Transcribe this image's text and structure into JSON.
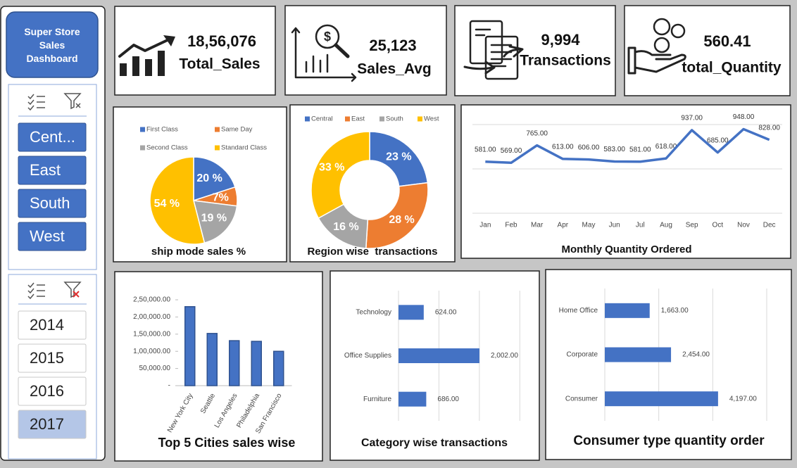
{
  "header": {
    "title": "Super Store Sales Dashboard"
  },
  "slicers": [
    {
      "items": [
        "Cent...",
        "East",
        "South",
        "West"
      ]
    },
    {
      "items": [
        "2014",
        "2015",
        "2016",
        "2017"
      ],
      "selected": 3
    }
  ],
  "kpis": [
    {
      "value": "18,56,076",
      "label": "Total_Sales"
    },
    {
      "value": "25,123",
      "label": "Sales_Avg"
    },
    {
      "value": "9,994",
      "label": "Transactions"
    },
    {
      "value": "560.41",
      "label": "total_Quantity"
    }
  ],
  "chart_data": [
    {
      "type": "pie",
      "title": "ship mode sales %",
      "categories": [
        "First Class",
        "Same Day",
        "Second Class",
        "Standard Class"
      ],
      "values": [
        20,
        7,
        19,
        54
      ],
      "value_labels": [
        "20 %",
        "7%",
        "19 %",
        "54 %"
      ],
      "colors": [
        "#4472c4",
        "#ed7d31",
        "#a5a5a5",
        "#ffc000"
      ],
      "legend": "top"
    },
    {
      "type": "doughnut",
      "title": "Region wise  transactions",
      "categories": [
        "Central",
        "East",
        "South",
        "West"
      ],
      "values": [
        23,
        28,
        16,
        33
      ],
      "value_labels": [
        "23 %",
        "28 %",
        "16 %",
        "33 %"
      ],
      "colors": [
        "#4472c4",
        "#ed7d31",
        "#a5a5a5",
        "#ffc000"
      ],
      "legend": "top"
    },
    {
      "type": "line",
      "title": "Monthly Quantity Ordered",
      "categories": [
        "Jan",
        "Feb",
        "Mar",
        "Apr",
        "May",
        "Jun",
        "Jul",
        "Aug",
        "Sep",
        "Oct",
        "Nov",
        "Dec"
      ],
      "values": [
        581,
        569,
        765,
        613,
        606,
        583,
        581,
        618,
        937,
        685,
        948,
        828
      ],
      "value_labels": [
        "581.00",
        "569.00",
        "765.00",
        "613.00",
        "606.00",
        "583.00",
        "581.00",
        "618.00",
        "937.00",
        "685.00",
        "948.00",
        "828.00"
      ],
      "color": "#4472c4",
      "ylim": [
        0,
        1000
      ],
      "yticks": [
        0,
        500,
        1000
      ],
      "grid": true
    },
    {
      "type": "bar",
      "title": "Top 5 Cities sales wise",
      "categories": [
        "New York City",
        "Seattle",
        "Los Angeles",
        "Philadelphia",
        "San Francisco"
      ],
      "values": [
        230000,
        152000,
        131000,
        129000,
        100000
      ],
      "color": "#4472c4",
      "ylim": [
        0,
        250000
      ],
      "yticks": [
        {
          "value": 0,
          "label": "-"
        },
        {
          "value": 50000,
          "label": "50,000.00"
        },
        {
          "value": 100000,
          "label": "1,00,000.00"
        },
        {
          "value": 150000,
          "label": "1,50,000.00"
        },
        {
          "value": 200000,
          "label": "2,00,000.00"
        },
        {
          "value": 250000,
          "label": "2,50,000.00"
        }
      ],
      "grid": false
    },
    {
      "type": "barh",
      "title": "Category wise transactions",
      "categories": [
        "Technology",
        "Office Supplies",
        "Furniture"
      ],
      "values": [
        624,
        2002,
        686
      ],
      "value_labels": [
        "624.00",
        "2,002.00",
        "686.00"
      ],
      "color": "#4472c4",
      "xlim": [
        0,
        3500
      ],
      "xticks": [
        0,
        1000,
        2000,
        3000
      ],
      "grid": true
    },
    {
      "type": "barh",
      "title": "Consumer type quantity order",
      "categories": [
        "Home Office",
        "Corporate",
        "Consumer"
      ],
      "values": [
        1663,
        2454,
        4197
      ],
      "value_labels": [
        "1,663.00",
        "2,454.00",
        "4,197.00"
      ],
      "color": "#4472c4",
      "xlim": [
        0,
        6000
      ],
      "xticks": [
        0,
        2000,
        4000,
        6000
      ],
      "grid": true
    }
  ]
}
